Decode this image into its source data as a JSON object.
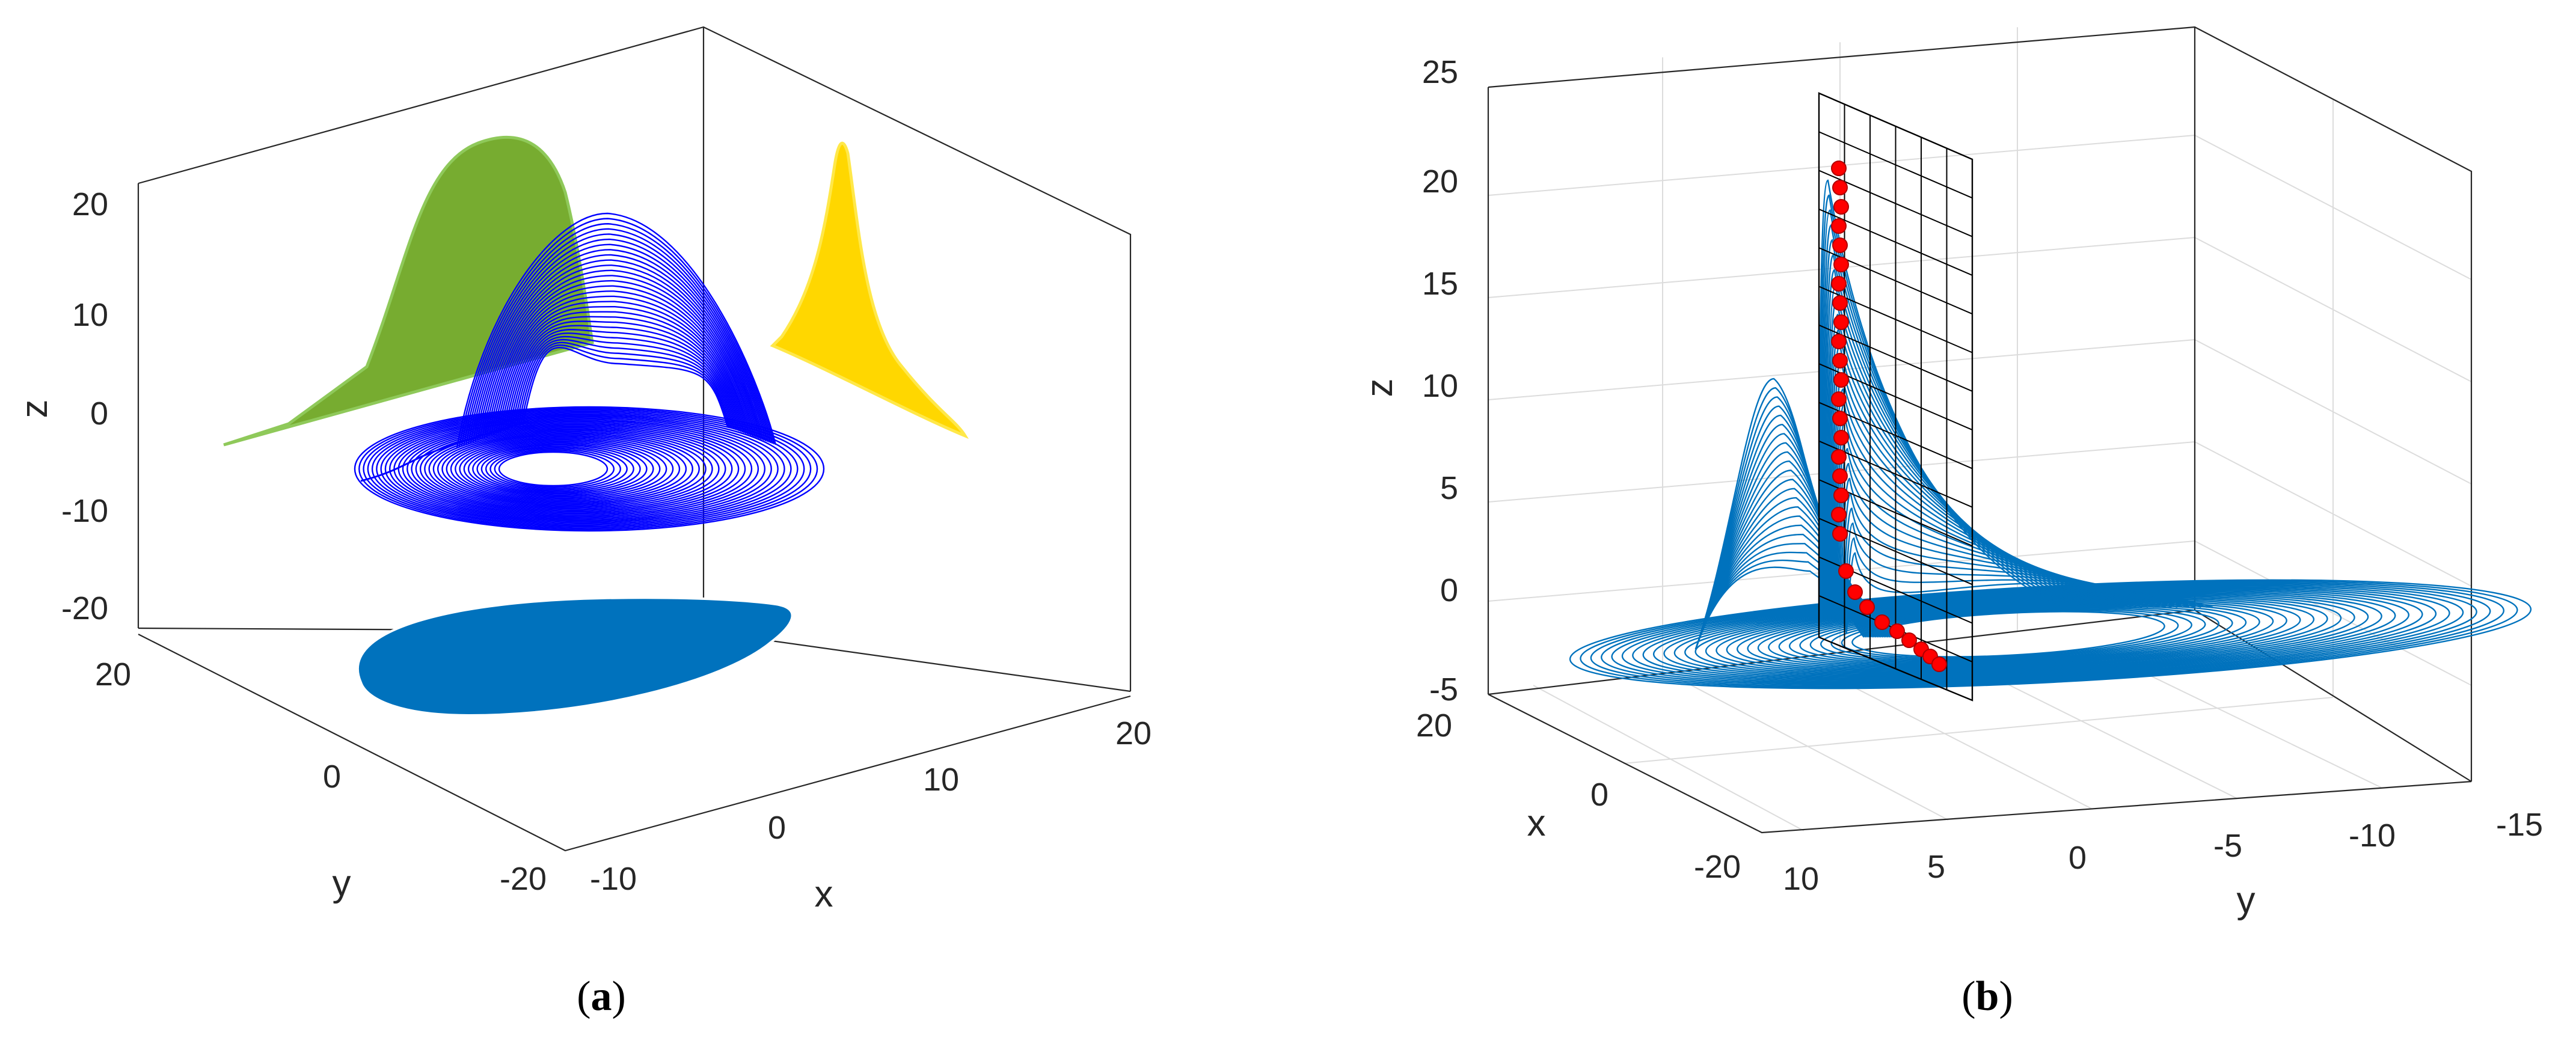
{
  "chart_data": [
    {
      "panel": "a",
      "type": "line",
      "caption": "a",
      "xlabel": "x",
      "ylabel": "y",
      "zlabel": "z",
      "x_ticks": [
        "-10",
        "0",
        "10",
        "20"
      ],
      "y_ticks": [
        "-20",
        "0",
        "20"
      ],
      "z_ticks": [
        "20",
        "10",
        "0",
        "-10",
        "-20"
      ],
      "xlim": [
        -15,
        25
      ],
      "ylim": [
        -25,
        25
      ],
      "zlim": [
        -22,
        27
      ],
      "series": [
        {
          "role": "trajectory-3d",
          "color": "#0000ff"
        },
        {
          "role": "projection-floor",
          "color": "#0072bd"
        },
        {
          "role": "projection-back-left",
          "color": "#77ac30"
        },
        {
          "role": "projection-back-right",
          "color": "#ffd700"
        }
      ]
    },
    {
      "panel": "b",
      "type": "line",
      "caption": "b",
      "xlabel": "x",
      "ylabel": "y",
      "zlabel": "z",
      "x_ticks": [
        "20",
        "0",
        "-20"
      ],
      "y_ticks": [
        "10",
        "5",
        "0",
        "-5",
        "-10",
        "-15"
      ],
      "z_ticks": [
        "25",
        "20",
        "15",
        "10",
        "5",
        "0",
        "-5"
      ],
      "xlim": [
        -25,
        25
      ],
      "ylim": [
        -15,
        12
      ],
      "zlim": [
        -5,
        25
      ],
      "grid": true,
      "series": [
        {
          "role": "trajectory-3d",
          "color": "#0072bd"
        },
        {
          "role": "poincare-section-points",
          "color": "#ff0000"
        },
        {
          "role": "poincare-section-plane",
          "color": "#000000"
        }
      ]
    }
  ]
}
